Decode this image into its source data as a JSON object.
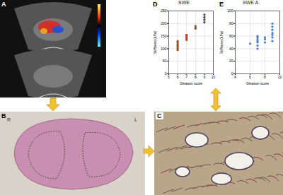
{
  "panels": [
    {
      "label": "A"
    },
    {
      "label": "B",
      "slide_labels": [
        "R",
        "L"
      ]
    },
    {
      "label": "C"
    },
    {
      "label": "D"
    },
    {
      "label": "E"
    }
  ],
  "chart_data": [
    {
      "type": "scatter",
      "title": "SWE",
      "x_label": "Gleason score",
      "y_label": "Stiffness (kPa)",
      "x": [
        6,
        6,
        6,
        6,
        6,
        6,
        6,
        6,
        7,
        7,
        7,
        7,
        7,
        8,
        8,
        8,
        9,
        9,
        9,
        9
      ],
      "values": [
        95,
        100,
        105,
        110,
        115,
        120,
        125,
        130,
        135,
        140,
        145,
        150,
        155,
        180,
        185,
        190,
        205,
        215,
        225,
        235
      ],
      "colors": [
        "#a0522d",
        "#a0522d",
        "#a0522d",
        "#a0522d",
        "#a0522d",
        "#a0522d",
        "#a0522d",
        "#a0522d",
        "#c0392b",
        "#c0392b",
        "#c0392b",
        "#c0392b",
        "#c0392b",
        "#8b5a2b",
        "#8b5a2b",
        "#8b5a2b",
        "#444444",
        "#444444",
        "#444444",
        "#444444"
      ],
      "xlim": [
        5,
        10
      ],
      "xticks": [
        5,
        6,
        7,
        8,
        9,
        10
      ],
      "ylim": [
        0,
        250
      ],
      "yticks": [
        0,
        50,
        100,
        150,
        200,
        250
      ],
      "grid": true
    },
    {
      "type": "scatter",
      "title": "SWE A",
      "x_label": "Gleason score",
      "y_label": "Stiffness (kPa)",
      "x": [
        6,
        7,
        7,
        7,
        7,
        7,
        7,
        7,
        8,
        8,
        8,
        9,
        9,
        9,
        9,
        9,
        9,
        9
      ],
      "values": [
        48,
        40,
        45,
        50,
        52,
        55,
        58,
        60,
        50,
        55,
        58,
        52,
        58,
        62,
        65,
        70,
        75,
        80
      ],
      "color": "#4a7fc1",
      "xlim": [
        4,
        10
      ],
      "xticks": [
        4,
        6,
        8,
        10
      ],
      "ylim": [
        0,
        100
      ],
      "yticks": [
        0,
        20,
        40,
        60,
        80,
        100
      ],
      "grid": true
    }
  ]
}
